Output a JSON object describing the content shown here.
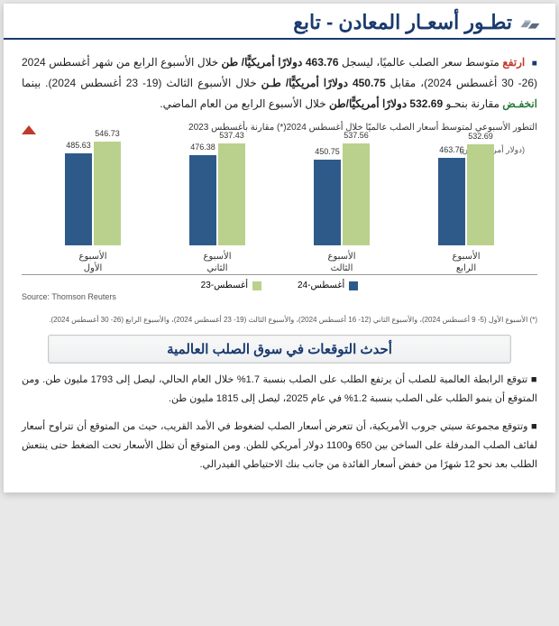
{
  "header": {
    "title": "تطـور أسعـار المعادن - تابع"
  },
  "main_paragraph": {
    "word_rise": "ارتفع",
    "t1": " متوسط سعر الصلب عالميًا، ليسجل ",
    "v1": "463.76 دولارًا أمريكيًّا/ طن",
    "t2": " خلال الأسبوع الرابع من شهر أغسطس 2024 (26- 30 أغسطس 2024)، مقابل ",
    "v2": "450.75 دولارًا أمريكيًّا/ طـن",
    "t3": " خلال الأسبوع الثالث (19- 23 أغسطس 2024). بينما ",
    "word_fall": "انخفـض",
    "t4": " مقارنة بنحـو ",
    "v3": "532.69 دولارًا أمريكيًّا/طن",
    "t5": " خلال الأسبوع الرابع من العام الماضي."
  },
  "chart": {
    "title": "التطور الأسبوعي لمتوسط أسعار الصلب عالميًا خلال أغسطس 2024(*) مقارنة بأغسطس 2023",
    "yaxis": "(دولار أمريكي/ طن)",
    "colors": {
      "s23": "#b9d18c",
      "s24": "#2e5a8a"
    },
    "ylim_max": 560,
    "groups": [
      {
        "label1": "الأسبوع",
        "label2": "الرابع",
        "v23": 532.69,
        "v24": 463.76
      },
      {
        "label1": "الأسبوع",
        "label2": "الثالث",
        "v23": 537.56,
        "v24": 450.75
      },
      {
        "label1": "الأسبوع",
        "label2": "الثاني",
        "v23": 537.43,
        "v24": 476.38
      },
      {
        "label1": "الأسبوع",
        "label2": "الأول",
        "v23": 546.73,
        "v24": 485.63
      }
    ],
    "legend": {
      "s23": "أغسطس-23",
      "s24": "أغسطس-24"
    },
    "source": "Source: Thomson Reuters",
    "footnote": "(*) الأسبوع الأول (5- 9 أغسطس 2024)، والأسبوع الثاني (12- 16 أغسطس 2024)، والأسبوع الثالث (19- 23 أغسطس 2024)، والأسبوع الرابع (26- 30 أغسطس 2024)."
  },
  "section": {
    "title": "أحدث التوقعات في سوق الصلب العالمية"
  },
  "bullets": {
    "b1": "تتوقع الرابطة العالمية للصلب أن يرتفع الطلب على الصلب بنسبة 1.7% خلال العام الحالي، ليصل إلى 1793 مليون طن. ومن المتوقع أن ينمو الطلب على الصلب بنسبة 1.2% في عام 2025، ليصل إلى 1815 مليون طن.",
    "b2": "وتتوقع مجموعة سيتي جروب الأمريكية، أن تتعرض أسعار الصلب لضغوط في الأمد القريب، حيث من المتوقع أن تتراوح أسعار لفائف الصلب المدرفلة على الساخن بين 650 و1100 دولار أمريكي للطن. ومن المتوقع أن تظل الأسعار تحت الضغط حتى ينتعش الطلب بعد نحو 12 شهرًا من خفض أسعار الفائدة من جانب بنك الاحتياطي الفيدرالي."
  }
}
